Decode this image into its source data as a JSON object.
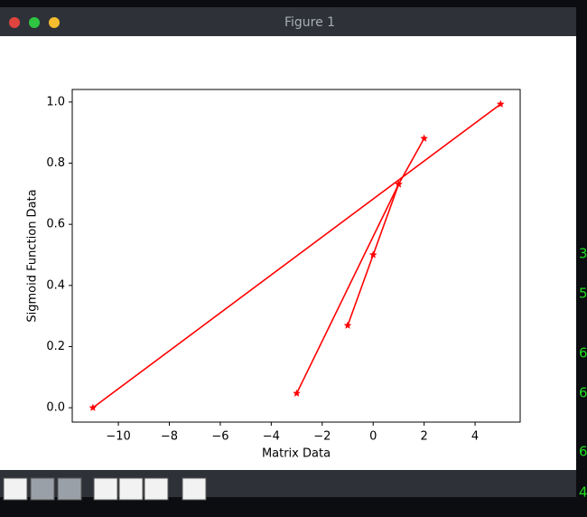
{
  "window": {
    "title": "Figure 1"
  },
  "terminal": {
    "lines": [
      "3",
      "5",
      "6",
      "6",
      "6",
      "4"
    ]
  },
  "chart_data": {
    "type": "line",
    "xlabel": "Matrix Data",
    "ylabel": "Sigmoid Function Data",
    "series": [
      {
        "color": "#ff0000",
        "x": [
          -1,
          0,
          1,
          2
        ],
        "values": [
          0.269,
          0.5,
          0.731,
          0.881
        ]
      },
      {
        "color": "#ff0000",
        "x": [
          -3,
          1
        ],
        "values": [
          0.047,
          0.731
        ]
      },
      {
        "color": "#ff0000",
        "x": [
          -11,
          5
        ],
        "values": [
          0.0,
          0.993
        ]
      }
    ],
    "xlim": [
      -11.81,
      5.77
    ],
    "xticks": [
      {
        "value": -10,
        "label": "−10"
      },
      {
        "value": -8,
        "label": "−8"
      },
      {
        "value": -6,
        "label": "−6"
      },
      {
        "value": -4,
        "label": "−4"
      },
      {
        "value": -2,
        "label": "−2"
      },
      0,
      2,
      4
    ],
    "ylim": [
      -0.047,
      1.041
    ],
    "yticks": [
      {
        "value": 0,
        "label": "0.0"
      },
      {
        "value": 0.2,
        "label": "0.2"
      },
      {
        "value": 0.4,
        "label": "0.4"
      },
      {
        "value": 0.6,
        "label": "0.6"
      },
      {
        "value": 0.8,
        "label": "0.8"
      },
      {
        "value": 1,
        "label": "1.0"
      }
    ],
    "grid": false,
    "marker": "star"
  }
}
